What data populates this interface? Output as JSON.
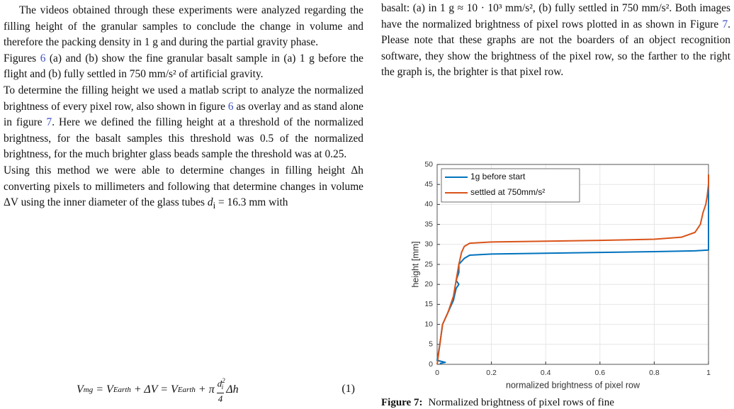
{
  "left": {
    "paragraphs": [
      [
        "The videos obtained through these experiments were analyzed regarding the filling height of the granular samples to conclude the change in volume and therefore the packing density in 1 g and during the partial gravity phase."
      ],
      [
        "Figures ",
        "6",
        " (a) and (b) show the fine granular basalt sample in (a) 1 g before the flight and (b) fully settled in 750 mm/s² of artificial gravity."
      ],
      [
        "To determine the filling height we used a matlab script to analyze the normalized brightness of every pixel row, also shown in figure ",
        "6",
        " as overlay and as stand alone in figure ",
        "7",
        ". Here we defined the filling height at a threshold of the normalized brightness, for the basalt samples this threshold was 0.5 of the normalized brightness, for the much brighter glass beads sample the threshold was at 0.25."
      ],
      [
        "Using this method we were able to determine changes in filling height Δh converting pixels to millimeters and following that determine changes in volume ΔV using the inner diameter of the glass tubes ",
        "d",
        "i",
        " = 16.3 mm with"
      ]
    ],
    "equation": {
      "v1": "V",
      "s1": "mg",
      "v2": " = V",
      "s2": "Earth",
      "v3": " + ΔV = V",
      "s3": "Earth",
      "v4": " + π",
      "num": "d",
      "numsub": "i",
      "numsup": "2",
      "den": "4",
      "v5": "Δh",
      "number": "(1)"
    }
  },
  "right": {
    "paragraph": [
      "basalt: (a) in 1 g ≈ 10 · 10³ mm/s², (b) fully settled in 750 mm/s². Both images have the normalized brightness of pixel rows plotted in as shown in Figure ",
      "7",
      ". Please note that these graphs are not the boarders of an object recognition software, they show the brightness of the pixel row, so the farther to the right the graph is, the brighter is that pixel row."
    ],
    "caption_label": "Figure 7:",
    "caption": "Normalized brightness of pixel rows of fine"
  },
  "chart_data": {
    "type": "line",
    "xlabel": "normalized brightness of pixel row",
    "ylabel": "height [mm]",
    "xlim": [
      0,
      1
    ],
    "ylim": [
      0,
      50
    ],
    "xticks": [
      0,
      0.2,
      0.4,
      0.6,
      0.8,
      1
    ],
    "yticks": [
      0,
      5,
      10,
      15,
      20,
      25,
      30,
      35,
      40,
      45,
      50
    ],
    "grid": true,
    "legend": "upper left",
    "series": [
      {
        "name": "1g before start",
        "color": "#0072bd",
        "x": [
          0.01,
          0.03,
          0,
          0.01,
          0.02,
          0.04,
          0.06,
          0.07,
          0.08,
          0.07,
          0.08,
          0.08,
          0.1,
          0.12,
          0.2,
          0.4,
          0.6,
          0.8,
          0.95,
          1,
          1,
          1,
          1
        ],
        "values": [
          0.2,
          0.5,
          1,
          5,
          10,
          13,
          16,
          19,
          20,
          21,
          23,
          25,
          26.5,
          27.3,
          27.6,
          27.8,
          28,
          28.2,
          28.4,
          28.6,
          30,
          40,
          47
        ]
      },
      {
        "name": "settled at 750mm/s²",
        "color": "#d95319",
        "x": [
          0,
          0.01,
          0.02,
          0.04,
          0.06,
          0.07,
          0.08,
          0.09,
          0.1,
          0.12,
          0.2,
          0.4,
          0.6,
          0.8,
          0.9,
          0.95,
          0.97,
          0.98,
          0.99,
          0.995,
          1,
          1
        ],
        "values": [
          0,
          5,
          10,
          13,
          17,
          21,
          25,
          28,
          29.5,
          30.3,
          30.6,
          30.8,
          31,
          31.3,
          31.8,
          33,
          35,
          38,
          40,
          42,
          45,
          47.5
        ]
      }
    ]
  }
}
